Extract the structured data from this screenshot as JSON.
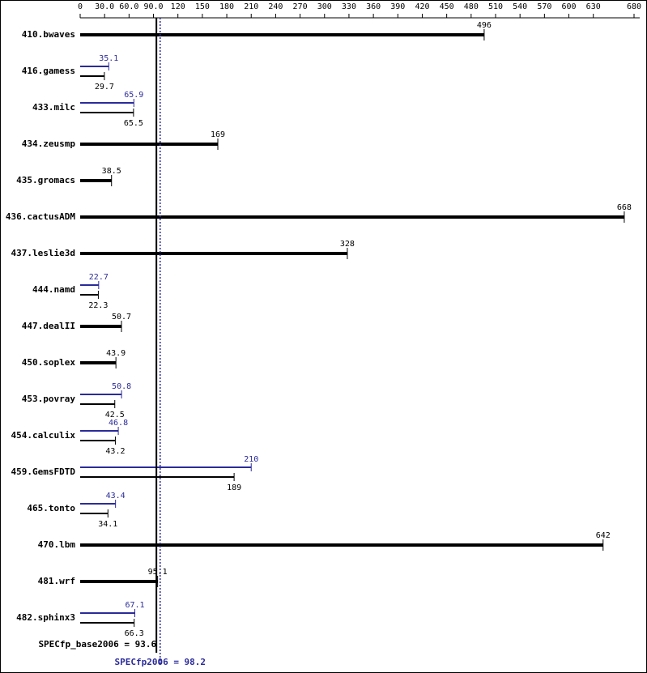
{
  "chart_data": {
    "type": "spec-bar",
    "categories": [
      "410.bwaves",
      "416.gamess",
      "433.milc",
      "434.zeusmp",
      "435.gromacs",
      "436.cactusADM",
      "437.leslie3d",
      "444.namd",
      "447.dealII",
      "450.soplex",
      "453.povray",
      "454.calculix",
      "459.GemsFDTD",
      "465.tonto",
      "470.lbm",
      "481.wrf",
      "482.sphinx3"
    ],
    "base_values": [
      496,
      29.7,
      65.5,
      169,
      38.5,
      668,
      328,
      22.3,
      50.7,
      43.9,
      42.5,
      43.2,
      189,
      34.1,
      642,
      95.1,
      66.3
    ],
    "peak_values": [
      null,
      35.1,
      65.9,
      null,
      null,
      null,
      null,
      22.7,
      null,
      null,
      50.8,
      46.8,
      210,
      43.4,
      null,
      null,
      67.1
    ],
    "base_color": "#000000",
    "peak_color": "#2b2b9a",
    "xlim": [
      0,
      680
    ],
    "xticks": [
      0,
      {
        "value": 30,
        "label": "30.0"
      },
      {
        "value": 60,
        "label": "60.0"
      },
      {
        "value": 90,
        "label": "90.0"
      },
      120,
      150,
      180,
      210,
      240,
      270,
      300,
      330,
      360,
      390,
      420,
      450,
      480,
      510,
      540,
      570,
      600,
      630,
      680
    ],
    "base_metric": {
      "value": 93.6,
      "label": "SPECfp_base2006 = 93.6"
    },
    "peak_metric": {
      "value": 98.2,
      "label": "SPECfp2006 = 98.2"
    }
  }
}
